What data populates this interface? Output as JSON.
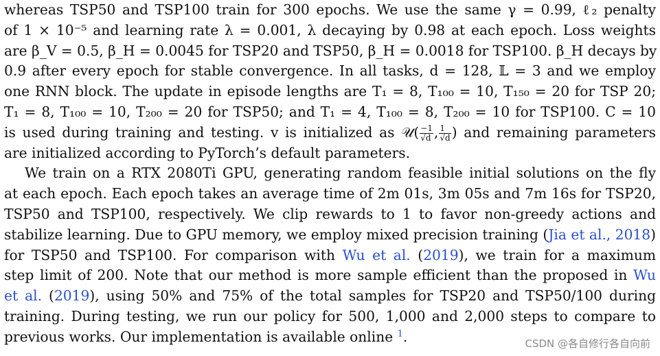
{
  "paragraph1": {
    "line1": "whereas TSP50 and TSP100 train for 300 epochs. We use the same γ = 0.99, ℓ₂ penalty",
    "line2": "of 1 × 10⁻⁵ and learning rate λ = 0.001, λ decaying by 0.98 at each epoch. Loss weights",
    "line3": "are β_V = 0.5, β_H = 0.0045 for TSP20 and TSP50, β_H = 0.0018 for TSP100. β_H decays by",
    "line4": "0.9 after every epoch for stable convergence. In all tasks, d = 128, 𝕃 = 3 and we employ",
    "line5": "one RNN block. The update in episode lengths are T₁ = 8, T₁₀₀ = 10, T₁₅₀ = 20 for TSP 20;",
    "line6": "T₁ = 8, T₁₀₀ = 10, T₂₀₀ = 20 for TSP50; and T₁ = 4, T₁₀₀ = 8, T₂₀₀ = 10 for TSP100. C = 10",
    "line7_pre": "is used during training and testing. v is initialized as 𝒰(",
    "frac1_num": "−1",
    "frac1_den": "√d",
    "frac_sep": ",",
    "frac2_num": "1",
    "frac2_den": "√d",
    "line7_post": ") and remaining parameters",
    "line8": "are initialized according to PyTorch’s default parameters."
  },
  "paragraph2": {
    "line1": "We train on a RTX 2080Ti GPU, generating random feasible initial solutions on the fly",
    "line2": "at each epoch. Each epoch takes an average time of 2m 01s, 3m 05s and 7m 16s for TSP20,",
    "line3": "TSP50 and TSP100, respectively. We clip rewards to 1 to favor non-greedy actions and",
    "line4_pre": "stabilize learning. Due to GPU memory, we employ mixed precision training (",
    "cite1_author": "Jia et al.",
    "cite1_sep": ", ",
    "cite1_year": "2018",
    "line4_post": ")",
    "line5_pre": "for TSP50 and TSP100. For comparison with ",
    "cite2_author": "Wu et al.",
    "cite2_open": " (",
    "cite2_year": "2019",
    "line5_post": "), we train for a maximum",
    "line6_pre": "step limit of 200. Note that our method is more sample efficient than the proposed in ",
    "cite3_author_a": "Wu",
    "cite3_author_b": "et al.",
    "cite3_open": " (",
    "cite3_year": "2019",
    "line7_post": "), using 50% and 75% of the total samples for TSP20 and TSP50/100 during",
    "line8": "training. During testing, we run our policy for 500, 1,000 and 2,000 steps to compare to",
    "line9_pre": "previous works. Our implementation is available online ",
    "footnote_mark": "1",
    "line9_post": "."
  },
  "watermark": "CSDN @各自修行各自向前"
}
